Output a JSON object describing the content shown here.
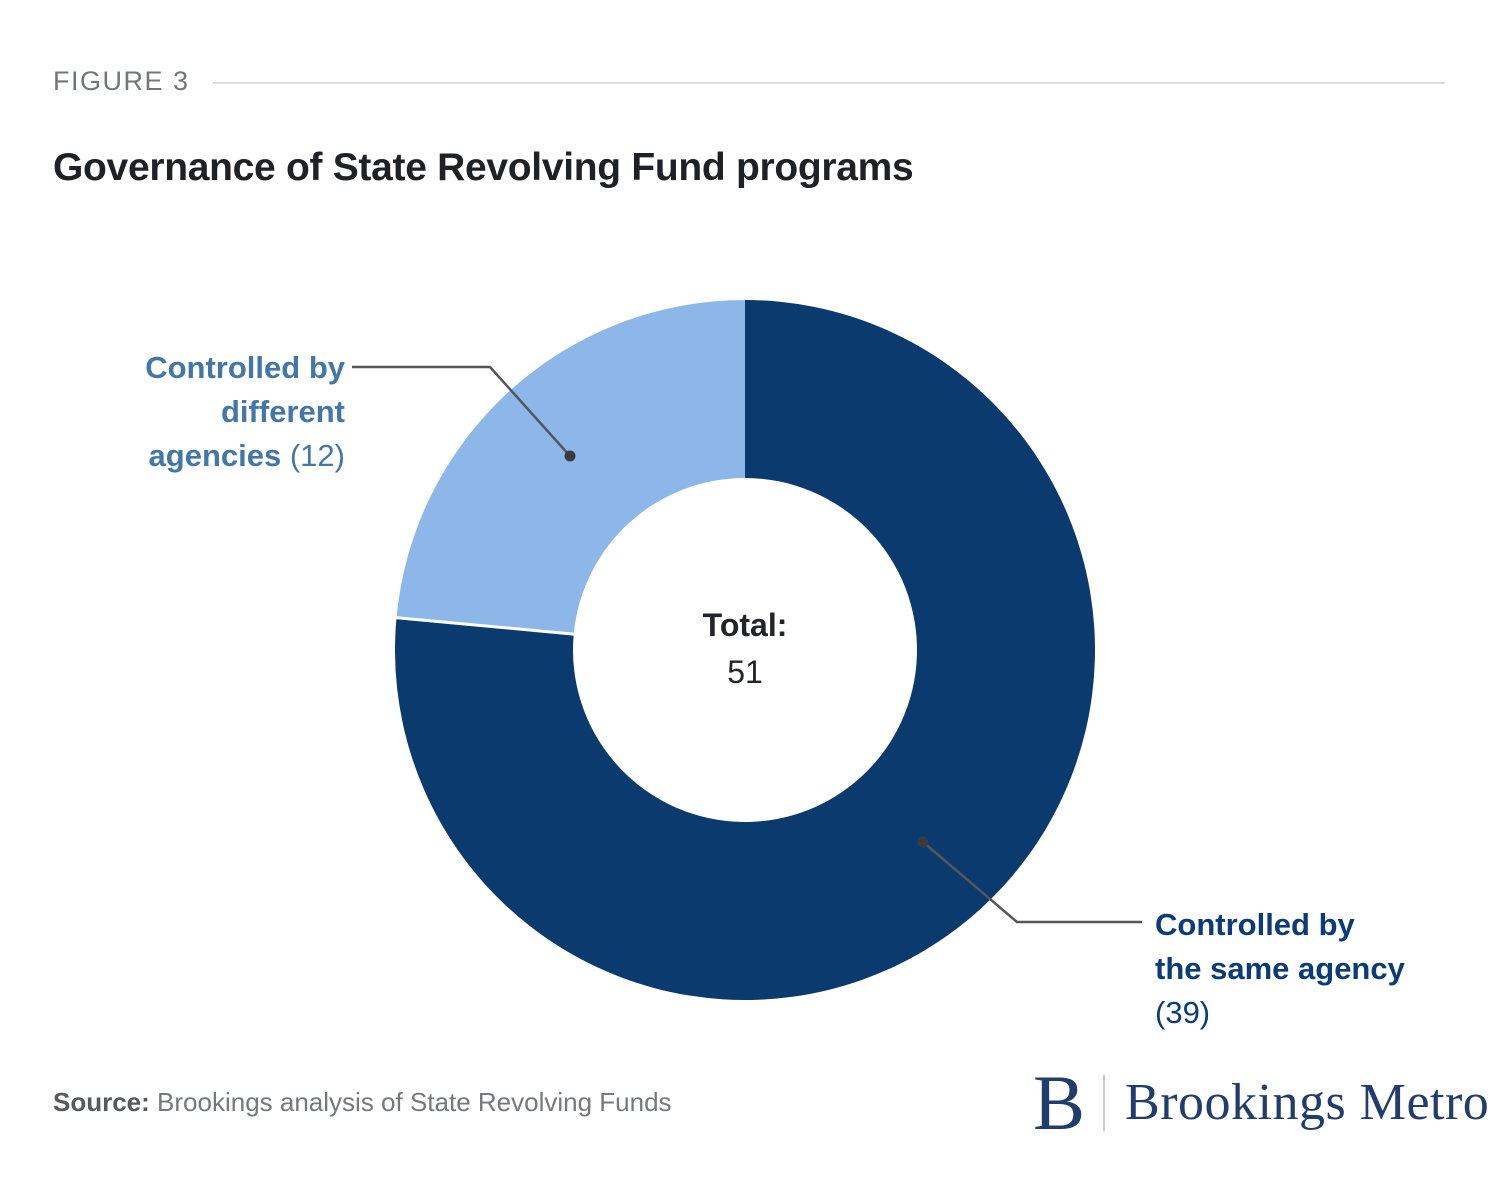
{
  "figure_label": "FIGURE 3",
  "title": "Governance of State Revolving Fund programs",
  "center": {
    "label": "Total:",
    "value": "51"
  },
  "callouts": {
    "different_agencies": {
      "line1": "Controlled by",
      "line2": "different",
      "line3": "agencies",
      "count": "(12)"
    },
    "same_agency": {
      "line1": "Controlled by",
      "line2": "the same agency",
      "count": "(39)"
    }
  },
  "source": {
    "label": "Source:",
    "text": "Brookings analysis of State Revolving Funds"
  },
  "logo": {
    "initial": "B",
    "wordmark": "Brookings Metro"
  },
  "colors": {
    "dark_navy": "#0B3A6F",
    "light_blue": "#8DB7E8",
    "callout_blue": "#4377A9",
    "callout_navy": "#0C3C78",
    "leader_gray": "#55565A"
  },
  "chart_data": {
    "type": "pie",
    "subtype": "donut",
    "title": "Governance of State Revolving Fund programs",
    "categories": [
      "Controlled by the same agency",
      "Controlled by different agencies"
    ],
    "values": [
      39,
      12
    ],
    "slugs": [
      "same-agency",
      "different-agencies"
    ],
    "colors": [
      "#0B3A6F",
      "#8DB7E8"
    ],
    "total": 51,
    "start_angle_deg": 0,
    "direction": "clockwise",
    "center_label": "Total:",
    "center_value": 51,
    "legend": "none",
    "annotations": [
      "Controlled by different agencies (12)",
      "Controlled by the same agency (39)"
    ]
  }
}
